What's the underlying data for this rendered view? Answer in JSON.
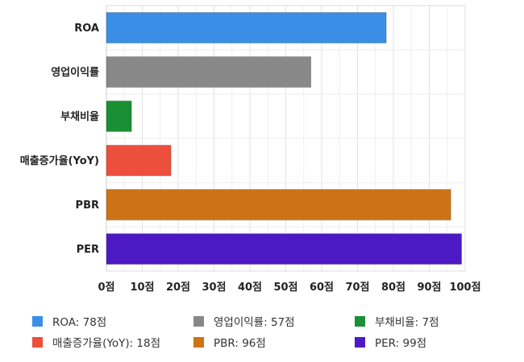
{
  "chart_data": {
    "type": "bar",
    "orientation": "horizontal",
    "categories": [
      "ROA",
      "영업이익률",
      "부채비율",
      "매출증가율(YoY)",
      "PBR",
      "PER"
    ],
    "values": [
      78,
      57,
      7,
      18,
      96,
      99
    ],
    "colors": [
      "#3a8ee6",
      "#888888",
      "#1a8f33",
      "#ec4f3c",
      "#cc7316",
      "#4c1ac4"
    ],
    "xlim": [
      0,
      100
    ],
    "xticks": [
      "0점",
      "10점",
      "20점",
      "30점",
      "40점",
      "50점",
      "60점",
      "70점",
      "80점",
      "90점",
      "100점"
    ],
    "grid": true,
    "legend_position": "bottom",
    "legend": [
      {
        "label": "ROA: 78점",
        "color": "#3a8ee6"
      },
      {
        "label": "영업이익률: 57점",
        "color": "#888888"
      },
      {
        "label": "부채비율: 7점",
        "color": "#1a8f33"
      },
      {
        "label": "매출증가율(YoY): 18점",
        "color": "#ec4f3c"
      },
      {
        "label": "PBR: 96점",
        "color": "#cc7316"
      },
      {
        "label": "PER: 99점",
        "color": "#4c1ac4"
      }
    ]
  }
}
